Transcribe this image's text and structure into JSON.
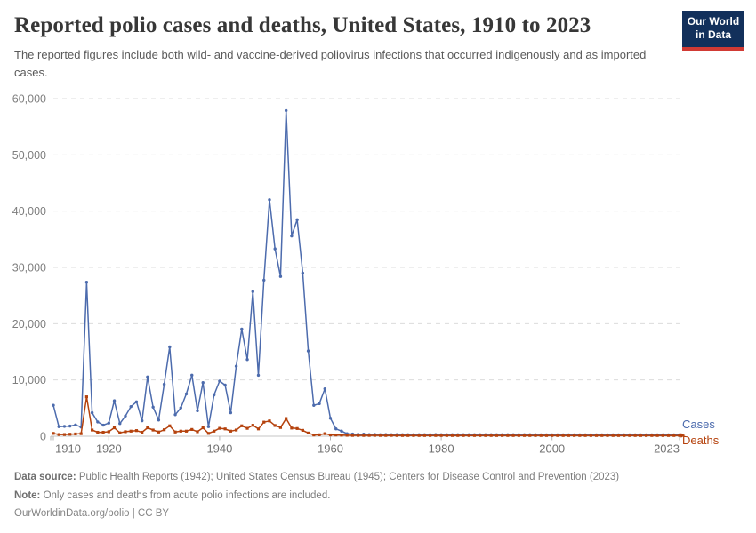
{
  "header": {
    "title": "Reported polio cases and deaths, United States, 1910 to 2023",
    "subtitle": "The reported figures include both wild- and vaccine-derived poliovirus infections that occurred indigenously and as imported cases.",
    "logo": {
      "line1": "Our World",
      "line2": "in Data",
      "bg_color": "#12305B",
      "accent_color": "#D13A34"
    }
  },
  "chart_data": {
    "type": "line",
    "title": "Reported polio cases and deaths, United States, 1910 to 2023",
    "xlabel": "",
    "ylabel": "",
    "xlim": [
      1910,
      2023
    ],
    "ylim": [
      0,
      60000
    ],
    "grid": "horizontal-dashed",
    "legend_position": "right-of-line-ends",
    "yticks": {
      "values": [
        0,
        10000,
        20000,
        30000,
        40000,
        50000,
        60000
      ],
      "labels": [
        "0",
        "10,000",
        "20,000",
        "30,000",
        "40,000",
        "50,000",
        "60,000"
      ]
    },
    "xticks": {
      "values": [
        1910,
        1920,
        1940,
        1960,
        1980,
        2000,
        2023
      ],
      "labels": [
        "1910",
        "1920",
        "1940",
        "1960",
        "1980",
        "2000",
        "2023"
      ]
    },
    "x": [
      1910,
      1911,
      1912,
      1913,
      1914,
      1915,
      1916,
      1917,
      1918,
      1919,
      1920,
      1921,
      1922,
      1923,
      1924,
      1925,
      1926,
      1927,
      1928,
      1929,
      1930,
      1931,
      1932,
      1933,
      1934,
      1935,
      1936,
      1937,
      1938,
      1939,
      1940,
      1941,
      1942,
      1943,
      1944,
      1945,
      1946,
      1947,
      1948,
      1949,
      1950,
      1951,
      1952,
      1953,
      1954,
      1955,
      1956,
      1957,
      1958,
      1959,
      1960,
      1961,
      1962,
      1963,
      1964,
      1965,
      1966,
      1967,
      1968,
      1969,
      1970,
      1971,
      1972,
      1973,
      1974,
      1975,
      1976,
      1977,
      1978,
      1979,
      1980,
      1981,
      1982,
      1983,
      1984,
      1985,
      1986,
      1987,
      1988,
      1989,
      1990,
      1991,
      1992,
      1993,
      1994,
      1995,
      1996,
      1997,
      1998,
      1999,
      2000,
      2001,
      2002,
      2003,
      2004,
      2005,
      2006,
      2007,
      2008,
      2009,
      2010,
      2011,
      2012,
      2013,
      2014,
      2015,
      2016,
      2017,
      2018,
      2019,
      2020,
      2021,
      2022,
      2023
    ],
    "series": [
      {
        "name": "Cases",
        "color": "#4C6BAD",
        "marker": "circle",
        "values": [
          5500,
          1700,
          1750,
          1800,
          2000,
          1639,
          27363,
          4174,
          2543,
          1967,
          2338,
          6301,
          2255,
          3589,
          5262,
          6104,
          2750,
          10533,
          5169,
          2882,
          9220,
          15872,
          3820,
          5043,
          7510,
          10839,
          4523,
          9514,
          1705,
          7343,
          9804,
          9086,
          4167,
          12450,
          19029,
          13624,
          25698,
          10827,
          27726,
          42033,
          33300,
          28386,
          57879,
          35592,
          38476,
          28985,
          15140,
          5485,
          5787,
          8425,
          3190,
          1312,
          910,
          449,
          122,
          72,
          113,
          41,
          53,
          20,
          33,
          21,
          31,
          8,
          7,
          8,
          14,
          18,
          15,
          34,
          9,
          6,
          8,
          15,
          8,
          7,
          10,
          6,
          9,
          5,
          7,
          10,
          6,
          3,
          8,
          6,
          7,
          2,
          1,
          1,
          0,
          0,
          0,
          0,
          0,
          1,
          0,
          0,
          0,
          1,
          0,
          0,
          0,
          0,
          0,
          0,
          0,
          0,
          0,
          0,
          0,
          0,
          1,
          0
        ]
      },
      {
        "name": "Deaths",
        "color": "#B5420D",
        "marker": "square",
        "values": [
          500,
          300,
          300,
          350,
          400,
          450,
          7000,
          1100,
          700,
          700,
          800,
          1500,
          600,
          800,
          900,
          1000,
          700,
          1500,
          1100,
          750,
          1150,
          1850,
          750,
          900,
          900,
          1200,
          800,
          1500,
          500,
          900,
          1400,
          1300,
          900,
          1100,
          1850,
          1400,
          1950,
          1300,
          2500,
          2720,
          1904,
          1551,
          3145,
          1450,
          1368,
          1043,
          566,
          221,
          255,
          454,
          230,
          90,
          60,
          41,
          17,
          16,
          9,
          16,
          24,
          13,
          7,
          18,
          2,
          1,
          0,
          0,
          1,
          1,
          1,
          2,
          0,
          0,
          0,
          0,
          0,
          0,
          0,
          0,
          0,
          0,
          0,
          0,
          0,
          0,
          0,
          0,
          0,
          0,
          0,
          0,
          0,
          0,
          0,
          0,
          0,
          0,
          0,
          0,
          0,
          0,
          0,
          0,
          0,
          0,
          0,
          0,
          0,
          0,
          0,
          0,
          0,
          0,
          0,
          0
        ]
      }
    ]
  },
  "footer": {
    "data_source_label": "Data source:",
    "data_source": " Public Health Reports (1942); United States Census Bureau (1945); Centers for Disease Control and Prevention (2023)",
    "note_label": "Note:",
    "note": " Only cases and deaths from acute polio infections are included.",
    "license": "OurWorldinData.org/polio | CC BY"
  }
}
